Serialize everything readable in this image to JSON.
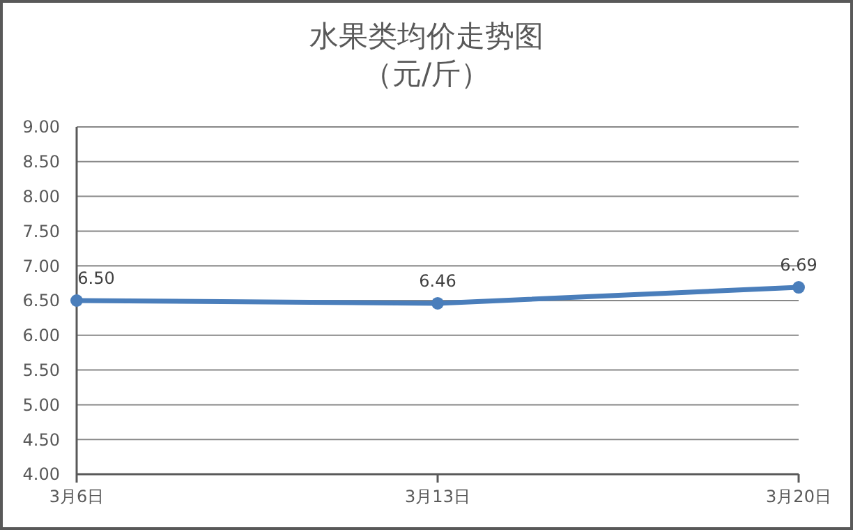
{
  "chart_data": {
    "type": "line",
    "title": "水果类均价走势图",
    "subtitle": "（元/斤）",
    "categories": [
      "3月6日",
      "3月13日",
      "3月20日"
    ],
    "series": [
      {
        "color": "#4a7ebb",
        "values": [
          6.5,
          6.46,
          6.69
        ],
        "value_labels": [
          "6.50",
          "6.46",
          "6.69"
        ]
      }
    ],
    "ylim": [
      4,
      9
    ],
    "yticks": [
      {
        "value": 4,
        "label": "4.00"
      },
      {
        "value": 4.5,
        "label": "4.50"
      },
      {
        "value": 5,
        "label": "5.00"
      },
      {
        "value": 5.5,
        "label": "5.50"
      },
      {
        "value": 6,
        "label": "6.00"
      },
      {
        "value": 6.5,
        "label": "6.50"
      },
      {
        "value": 7,
        "label": "7.00"
      },
      {
        "value": 7.5,
        "label": "7.50"
      },
      {
        "value": 8,
        "label": "8.00"
      },
      {
        "value": 8.5,
        "label": "8.50"
      },
      {
        "value": 9,
        "label": "9.00"
      }
    ],
    "grid": "y",
    "marker": "circle",
    "line_style": "solid"
  }
}
